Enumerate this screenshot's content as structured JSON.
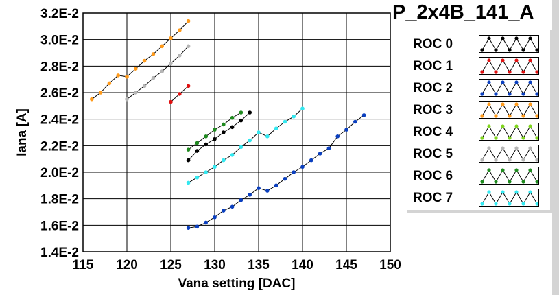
{
  "chart_data": {
    "type": "line",
    "title": "P_2x4B_141_A",
    "xlabel": "Vana setting [DAC]",
    "ylabel": "Iana [A]",
    "xlim": [
      115,
      150
    ],
    "ylim": [
      0.014,
      0.032
    ],
    "x_ticks": [
      115,
      120,
      125,
      130,
      135,
      140,
      145,
      150
    ],
    "y_ticks": [
      0.014,
      0.016,
      0.018,
      0.02,
      0.022,
      0.024,
      0.026,
      0.028,
      0.03,
      0.032
    ],
    "y_tick_labels": [
      "1.4E-2",
      "1.6E-2",
      "1.8E-2",
      "2.0E-2",
      "2.2E-2",
      "2.4E-2",
      "2.6E-2",
      "2.8E-2",
      "3.0E-2",
      "3.2E-2"
    ],
    "x_tick_labels": [
      "115",
      "120",
      "125",
      "130",
      "135",
      "140",
      "145",
      "150"
    ],
    "grid": true,
    "legend_position": "right",
    "series": [
      {
        "name": "ROC 0",
        "color": "#000000",
        "x": [
          127,
          128,
          129,
          130,
          131,
          132,
          133,
          134
        ],
        "y": [
          0.0209,
          0.0216,
          0.0221,
          0.0225,
          0.023,
          0.0234,
          0.0239,
          0.0245
        ]
      },
      {
        "name": "ROC 1",
        "color": "#e01010",
        "x": [
          125,
          126,
          127
        ],
        "y": [
          0.0253,
          0.0259,
          0.0265
        ]
      },
      {
        "name": "ROC 2",
        "color": "#0a3fbf",
        "x": [
          127,
          128,
          129,
          130,
          131,
          132,
          133,
          134,
          135,
          136,
          137,
          138,
          139,
          140,
          141,
          142,
          143,
          144,
          145,
          146,
          147
        ],
        "y": [
          0.0158,
          0.0159,
          0.0162,
          0.0166,
          0.0171,
          0.0174,
          0.0179,
          0.0183,
          0.0188,
          0.0186,
          0.019,
          0.0195,
          0.02,
          0.0204,
          0.0209,
          0.0214,
          0.0218,
          0.0227,
          0.0232,
          0.0238,
          0.0243
        ]
      },
      {
        "name": "ROC 3",
        "color": "#ff9a1a",
        "x": [
          116,
          117,
          118,
          119,
          120,
          121,
          122,
          123,
          124,
          125,
          126,
          127
        ],
        "y": [
          0.0255,
          0.026,
          0.0267,
          0.0273,
          0.0272,
          0.0278,
          0.0284,
          0.0289,
          0.0295,
          0.0301,
          0.0307,
          0.0314
        ]
      },
      {
        "name": "ROC 4",
        "color": "#7fd41f",
        "x": [],
        "y": []
      },
      {
        "name": "ROC 5",
        "color": "#b5b5b5",
        "x": [
          120,
          121,
          122,
          123,
          124,
          125,
          126,
          127
        ],
        "y": [
          0.0255,
          0.026,
          0.0265,
          0.0271,
          0.0276,
          0.0282,
          0.0288,
          0.0295
        ]
      },
      {
        "name": "ROC 6",
        "color": "#1f8a1f",
        "x": [
          127,
          128,
          129,
          130,
          131,
          132,
          133
        ],
        "y": [
          0.0217,
          0.0222,
          0.0227,
          0.0232,
          0.0236,
          0.0241,
          0.0245
        ]
      },
      {
        "name": "ROC 7",
        "color": "#33e8f0",
        "x": [
          127,
          128,
          129,
          130,
          131,
          132,
          133,
          134,
          135,
          136,
          137,
          138,
          139,
          140
        ],
        "y": [
          0.0192,
          0.0196,
          0.02,
          0.0204,
          0.0209,
          0.0213,
          0.0219,
          0.0224,
          0.023,
          0.0227,
          0.0233,
          0.0238,
          0.0242,
          0.0248
        ]
      }
    ]
  }
}
